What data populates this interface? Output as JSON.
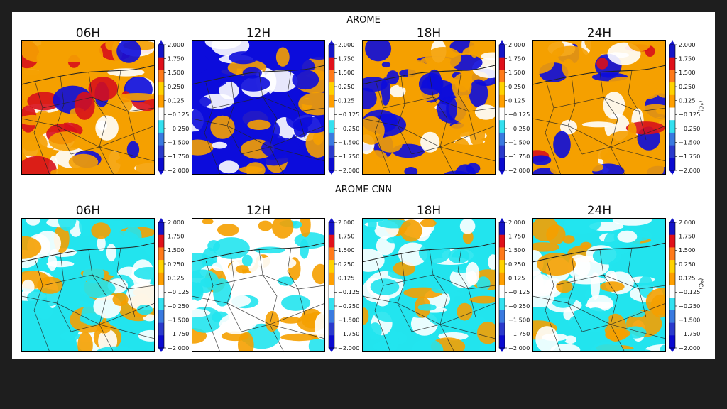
{
  "rows": [
    {
      "title": "AROME",
      "panels": [
        {
          "label": "06H",
          "dominant": "warm",
          "mix": {
            "cold": 0.1,
            "neutral": 0.25,
            "warm": 0.55,
            "hot": 0.1
          }
        },
        {
          "label": "12H",
          "dominant": "cold",
          "mix": {
            "cold": 0.55,
            "neutral": 0.2,
            "warm": 0.25,
            "hot": 0.0
          }
        },
        {
          "label": "18H",
          "dominant": "warm",
          "mix": {
            "cold": 0.3,
            "neutral": 0.25,
            "warm": 0.45,
            "hot": 0.0
          }
        },
        {
          "label": "24H",
          "dominant": "warm",
          "mix": {
            "cold": 0.15,
            "neutral": 0.2,
            "warm": 0.55,
            "hot": 0.1
          }
        }
      ]
    },
    {
      "title": "AROME CNN",
      "panels": [
        {
          "label": "06H",
          "dominant": "cool",
          "mix": {
            "cold": 0.0,
            "neutral": 0.35,
            "warm": 0.25,
            "cool": 0.4
          }
        },
        {
          "label": "12H",
          "dominant": "neutral",
          "mix": {
            "cold": 0.0,
            "neutral": 0.35,
            "warm": 0.35,
            "cool": 0.3
          }
        },
        {
          "label": "18H",
          "dominant": "cool",
          "mix": {
            "cold": 0.0,
            "neutral": 0.3,
            "warm": 0.25,
            "cool": 0.45
          }
        },
        {
          "label": "24H",
          "dominant": "cool",
          "mix": {
            "cold": 0.0,
            "neutral": 0.3,
            "warm": 0.3,
            "cool": 0.4
          }
        }
      ]
    }
  ],
  "colorbar": {
    "ticks": [
      "2.000",
      "1.750",
      "1.500",
      "0.250",
      "0.125",
      "−0.125",
      "−0.250",
      "−1.500",
      "−1.750",
      "−2.000"
    ],
    "colors": [
      "#1414c8",
      "#e0101a",
      "#ff7a1a",
      "#ffd200",
      "#ff9f00",
      "#ffffff",
      "#33e0f0",
      "#3a7ae0",
      "#2a3acc",
      "#0a0ad0"
    ],
    "unit": "(°C)"
  },
  "palette": {
    "cold": "#0c0cdc",
    "cool": "#22e4ee",
    "neutral": "#ffffff",
    "warm": "#f5a000",
    "hot": "#d8101a",
    "border": "#222222"
  }
}
